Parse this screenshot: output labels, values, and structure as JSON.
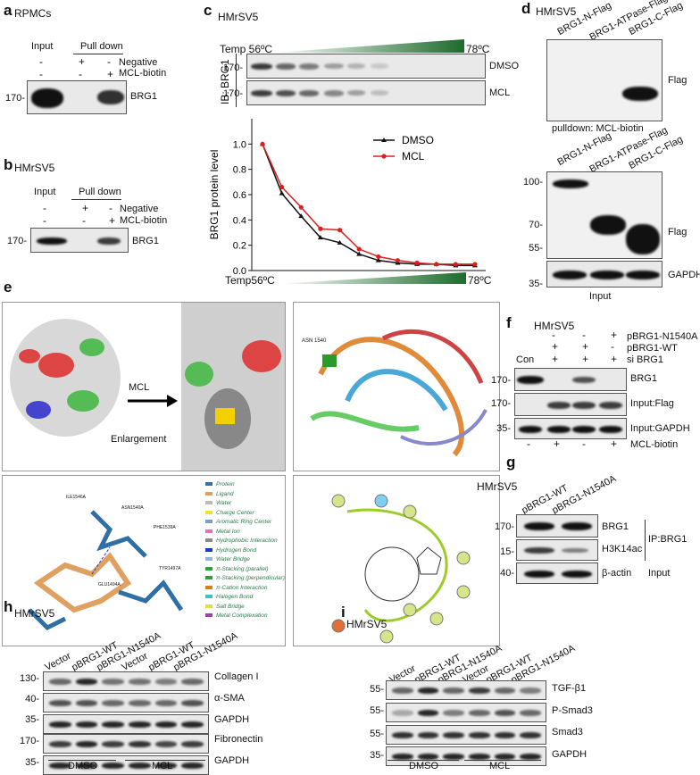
{
  "panels": {
    "a": {
      "letter": "a",
      "cell": "RPMCs",
      "input": "Input",
      "pulldown": "Pull down",
      "row1": "Negative",
      "row2": "MCL-biotin",
      "signs_r1": [
        "-",
        "+",
        "-"
      ],
      "signs_r2": [
        "-",
        "-",
        "+"
      ],
      "mw": "170-",
      "band": "BRG1"
    },
    "b": {
      "letter": "b",
      "cell": "HMrSV5",
      "input": "Input",
      "pulldown": "Pull down",
      "row1": "Negative",
      "row2": "MCL-biotin",
      "signs_r1": [
        "-",
        "+",
        "-"
      ],
      "signs_r2": [
        "-",
        "-",
        "+"
      ],
      "mw": "170-",
      "band": "BRG1"
    },
    "c": {
      "letter": "c",
      "cell": "HMrSV5",
      "temp": "Temp 56ºC",
      "temp_end": "78ºC",
      "ib": "IB: BRG1",
      "mw1": "170-",
      "mw2": "170-",
      "dmso": "DMSO",
      "mcl": "MCL",
      "temp_bottom": "Temp56ºC",
      "temp_bottom_end": "78ºC"
    },
    "d": {
      "letter": "d",
      "cell": "HMrSV5",
      "lanes": [
        "BRG1-N-Flag",
        "BRG1-ATPase-Flag",
        "BRG1-C-Flag"
      ],
      "flag": "Flag",
      "pulldown": "pulldown: MCL-biotin",
      "mw": [
        "100-",
        "70-",
        "55-",
        "35-"
      ],
      "flag2": "Flag",
      "gapdh": "GAPDH",
      "input": "Input"
    },
    "e": {
      "letter": "e",
      "mcl": "MCL",
      "enlargement": "Enlargement",
      "legend": [
        "Protein",
        "Ligand",
        "Water",
        "Charge Center",
        "Aromatic Ring Center",
        "Metal Ion",
        "Hydrophobic Interaction",
        "Hydrogen Bond",
        "Water Bridge",
        "π-Stacking (parallel)",
        "π-Stacking (perpendicular)",
        "π-Cation Interaction",
        "Halogen Bond",
        "Salt Bridge",
        "Metal Complexation"
      ],
      "legend_colors": [
        "#3a6ea5",
        "#e0a060",
        "#bbbbbb",
        "#f0e030",
        "#7aa0c8",
        "#e070c0",
        "#8a8a8a",
        "#1a3acc",
        "#9ab0d8",
        "#30a030",
        "#30a030",
        "#d08020",
        "#40c0c0",
        "#e0e040",
        "#a040a0"
      ],
      "res_labels": [
        "ILE1546A",
        "ASN1540A",
        "PHE1539A",
        "TYR1497A",
        "GLU1494A"
      ],
      "ribbon_label": "ASN 1540"
    },
    "f": {
      "letter": "f",
      "cell": "HMrSV5",
      "rows": [
        "pBRG1-N1540A",
        "pBRG1-WT",
        "si BRG1"
      ],
      "con": "Con",
      "signs": [
        [
          "-",
          "-",
          "+"
        ],
        [
          "+",
          "+",
          "-"
        ],
        [
          "+",
          "+",
          "+"
        ]
      ],
      "mw": [
        "170-",
        "170-",
        "35-"
      ],
      "bands": [
        "BRG1",
        "Input:Flag",
        "Input:GAPDH"
      ],
      "biotin": "MCL-biotin",
      "biotin_signs": [
        "-",
        "+",
        "-",
        "+"
      ]
    },
    "g": {
      "letter": "g",
      "cell": "HMrSV5",
      "lanes": [
        "pBRG1-WT",
        "pBRG1-N1540A"
      ],
      "mw": [
        "170-",
        "15-",
        "40-"
      ],
      "bands": [
        "BRG1",
        "H3K14ac",
        "β-actin"
      ],
      "ip": "IP:BRG1",
      "input": "Input"
    },
    "h": {
      "letter": "h",
      "cell": "HMrSV5",
      "lanes": [
        "Vector",
        "pBRG1-WT",
        "pBRG1-N1540A",
        "Vector",
        "pBRG1-WT",
        "pBRG1-N1540A"
      ],
      "mw": [
        "130-",
        "40-",
        "35-",
        "170-",
        "35-"
      ],
      "bands": [
        "Collagen I",
        "α-SMA",
        "GAPDH",
        "Fibronectin",
        "GAPDH"
      ],
      "groups": [
        "DMSO",
        "MCL"
      ]
    },
    "i": {
      "letter": "i",
      "cell": "HMrSV5",
      "lanes": [
        "Vector",
        "pBRG1-WT",
        "pBRG1-N1540A",
        "Vector",
        "pBRG1-WT",
        "pBRG1-N1540A"
      ],
      "mw": [
        "55-",
        "55-",
        "55-",
        "35-"
      ],
      "bands": [
        "TGF-β1",
        "P-Smad3",
        "Smad3",
        "GAPDH"
      ],
      "groups": [
        "DMSO",
        "MCL"
      ]
    }
  },
  "chart_data": {
    "type": "line",
    "ylabel": "BRG1 protein level",
    "xlabel": "",
    "ylim": [
      0,
      1.2
    ],
    "yticks": [
      "0.0",
      "0.2",
      "0.4",
      "0.6",
      "0.8",
      "1.0"
    ],
    "x": [
      56,
      58,
      60,
      62,
      64,
      66,
      68,
      70,
      72,
      74,
      76,
      78
    ],
    "series": [
      {
        "name": "DMSO",
        "color": "#111111",
        "values": [
          1.0,
          0.61,
          0.43,
          0.26,
          0.22,
          0.13,
          0.08,
          0.06,
          0.05,
          0.05,
          0.04,
          0.04
        ]
      },
      {
        "name": "MCL",
        "color": "#d92020",
        "values": [
          1.0,
          0.66,
          0.5,
          0.33,
          0.32,
          0.17,
          0.11,
          0.08,
          0.06,
          0.05,
          0.05,
          0.05
        ]
      }
    ],
    "legend_position": "top-right"
  }
}
